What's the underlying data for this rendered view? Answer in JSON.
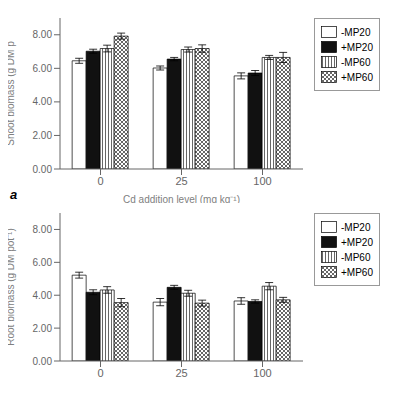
{
  "chart_data": [
    {
      "type": "bar",
      "categories": [
        "0",
        "25",
        "100"
      ],
      "series": [
        {
          "name": "-MP20",
          "color": "white",
          "values": [
            6.45,
            6.02,
            5.55
          ],
          "errors": [
            0.15,
            0.12,
            0.18
          ]
        },
        {
          "name": "+MP20",
          "color": "#111111",
          "values": [
            7.02,
            6.55,
            5.72
          ],
          "errors": [
            0.12,
            0.1,
            0.15
          ]
        },
        {
          "name": "-MP60",
          "color": "white",
          "values": [
            7.18,
            7.12,
            6.65
          ],
          "errors": [
            0.2,
            0.15,
            0.12
          ]
        },
        {
          "name": "+MP60",
          "color": "white",
          "values": [
            7.92,
            7.18,
            6.65
          ],
          "errors": [
            0.18,
            0.22,
            0.3
          ]
        }
      ],
      "ylabel": "Shoot biomass (g DM p",
      "xlabel": "Cd addition level (mg kg⁻¹)",
      "annotations": [
        "a"
      ],
      "ylim": [
        0,
        9.0
      ],
      "yticks": [
        {
          "value": 0,
          "label": "0.00"
        },
        {
          "value": 2,
          "label": "2.00"
        },
        {
          "value": 4,
          "label": "4.00"
        },
        {
          "value": 6,
          "label": "6.00"
        },
        {
          "value": 8,
          "label": "8.00"
        }
      ],
      "legend": "right"
    },
    {
      "type": "bar",
      "categories": [
        "0",
        "25",
        "100"
      ],
      "series": [
        {
          "name": "-MP20",
          "color": "white",
          "values": [
            5.22,
            3.58,
            3.65
          ],
          "errors": [
            0.18,
            0.22,
            0.2
          ]
        },
        {
          "name": "+MP20",
          "color": "#111111",
          "values": [
            4.18,
            4.48,
            3.62
          ],
          "errors": [
            0.15,
            0.12,
            0.1
          ]
        },
        {
          "name": "-MP60",
          "color": "white",
          "values": [
            4.32,
            4.12,
            4.55
          ],
          "errors": [
            0.2,
            0.18,
            0.22
          ]
        },
        {
          "name": "+MP60",
          "color": "white",
          "values": [
            3.55,
            3.52,
            3.72
          ],
          "errors": [
            0.25,
            0.18,
            0.15
          ]
        }
      ],
      "ylabel": "Root biomass (g DM pot⁻¹)",
      "ylim": [
        0,
        9.0
      ],
      "yticks": [
        {
          "value": 0,
          "label": "0.00"
        },
        {
          "value": 2,
          "label": "2.00"
        },
        {
          "value": 4,
          "label": "4.00"
        },
        {
          "value": 6,
          "label": "6.00"
        },
        {
          "value": 8,
          "label": "8.00"
        }
      ],
      "legend": "right"
    }
  ]
}
